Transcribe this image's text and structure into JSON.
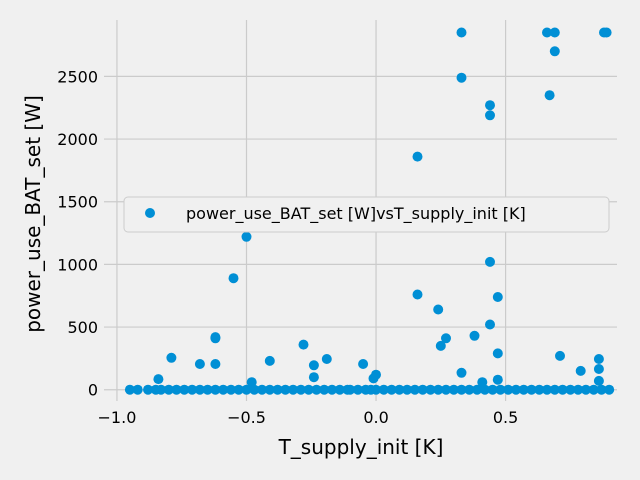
{
  "chart_data": {
    "type": "scatter",
    "title": "",
    "xlabel": "T_supply_init [K]",
    "ylabel": "power_use_BAT_set [W]",
    "xlim": [
      -1.05,
      0.93
    ],
    "ylim": [
      -90,
      2950
    ],
    "xticks": [
      -1.0,
      -0.5,
      0.0,
      0.5
    ],
    "xtick_labels": [
      "−1.0",
      "−0.5",
      "0.0",
      "0.5"
    ],
    "yticks": [
      0,
      500,
      1000,
      1500,
      2000,
      2500
    ],
    "ytick_labels": [
      "0",
      "500",
      "1000",
      "1500",
      "2000",
      "2500"
    ],
    "grid": true,
    "legend_placement": "center-right",
    "colors": {
      "marker": "#008fd5",
      "background": "#f0f0f0",
      "grid": "#cbcbcb"
    },
    "series": [
      {
        "name": "power_use_BAT_set [W]vsT_supply_init [K]",
        "points": [
          [
            0.33,
            2850
          ],
          [
            0.66,
            2850
          ],
          [
            0.69,
            2850
          ],
          [
            0.89,
            2850
          ],
          [
            0.88,
            2850
          ],
          [
            0.33,
            2490
          ],
          [
            0.69,
            2700
          ],
          [
            0.67,
            2350
          ],
          [
            0.44,
            2270
          ],
          [
            0.44,
            2190
          ],
          [
            0.16,
            1860
          ],
          [
            -0.36,
            1480
          ],
          [
            -0.5,
            1220
          ],
          [
            -0.55,
            890
          ],
          [
            0.44,
            1020
          ],
          [
            0.16,
            760
          ],
          [
            0.47,
            740
          ],
          [
            0.24,
            640
          ],
          [
            0.44,
            520
          ],
          [
            0.27,
            410
          ],
          [
            0.38,
            430
          ],
          [
            0.25,
            350
          ],
          [
            -0.62,
            420
          ],
          [
            -0.62,
            410
          ],
          [
            -0.28,
            360
          ],
          [
            0.47,
            290
          ],
          [
            0.71,
            270
          ],
          [
            -0.79,
            255
          ],
          [
            -0.19,
            245
          ],
          [
            0.86,
            245
          ],
          [
            -0.41,
            230
          ],
          [
            -0.68,
            205
          ],
          [
            -0.62,
            205
          ],
          [
            -0.05,
            205
          ],
          [
            -0.24,
            195
          ],
          [
            0.86,
            165
          ],
          [
            0.79,
            150
          ],
          [
            0.33,
            135
          ],
          [
            -0.0,
            120
          ],
          [
            -0.01,
            90
          ],
          [
            -0.24,
            100
          ],
          [
            -0.84,
            85
          ],
          [
            0.47,
            80
          ],
          [
            0.86,
            70
          ],
          [
            -0.48,
            60
          ],
          [
            0.41,
            60
          ],
          [
            -0.95,
            0
          ],
          [
            -0.92,
            0
          ],
          [
            -0.88,
            0
          ],
          [
            -0.85,
            0
          ],
          [
            -0.83,
            0
          ],
          [
            -0.8,
            0
          ],
          [
            -0.77,
            0
          ],
          [
            -0.74,
            0
          ],
          [
            -0.71,
            0
          ],
          [
            -0.68,
            0
          ],
          [
            -0.65,
            0
          ],
          [
            -0.62,
            0
          ],
          [
            -0.59,
            0
          ],
          [
            -0.56,
            0
          ],
          [
            -0.53,
            0
          ],
          [
            -0.5,
            0
          ],
          [
            -0.47,
            0
          ],
          [
            -0.44,
            0
          ],
          [
            -0.41,
            0
          ],
          [
            -0.38,
            0
          ],
          [
            -0.35,
            0
          ],
          [
            -0.32,
            0
          ],
          [
            -0.29,
            0
          ],
          [
            -0.26,
            0
          ],
          [
            -0.23,
            0
          ],
          [
            -0.2,
            0
          ],
          [
            -0.17,
            0
          ],
          [
            -0.14,
            0
          ],
          [
            -0.11,
            0
          ],
          [
            -0.1,
            0
          ],
          [
            -0.07,
            0
          ],
          [
            -0.04,
            0
          ],
          [
            -0.02,
            0
          ],
          [
            0.0,
            0
          ],
          [
            0.03,
            0
          ],
          [
            0.06,
            0
          ],
          [
            0.09,
            0
          ],
          [
            0.12,
            0
          ],
          [
            0.15,
            0
          ],
          [
            0.18,
            0
          ],
          [
            0.21,
            0
          ],
          [
            0.24,
            0
          ],
          [
            0.27,
            0
          ],
          [
            0.3,
            0
          ],
          [
            0.33,
            0
          ],
          [
            0.36,
            0
          ],
          [
            0.39,
            0
          ],
          [
            0.42,
            0
          ],
          [
            0.45,
            0
          ],
          [
            0.48,
            0
          ],
          [
            0.51,
            0
          ],
          [
            0.54,
            0
          ],
          [
            0.57,
            0
          ],
          [
            0.6,
            0
          ],
          [
            0.63,
            0
          ],
          [
            0.66,
            0
          ],
          [
            0.69,
            0
          ],
          [
            0.72,
            0
          ],
          [
            0.75,
            0
          ],
          [
            0.78,
            0
          ],
          [
            0.81,
            0
          ],
          [
            0.84,
            0
          ],
          [
            0.87,
            0
          ],
          [
            0.9,
            0
          ]
        ]
      }
    ]
  }
}
